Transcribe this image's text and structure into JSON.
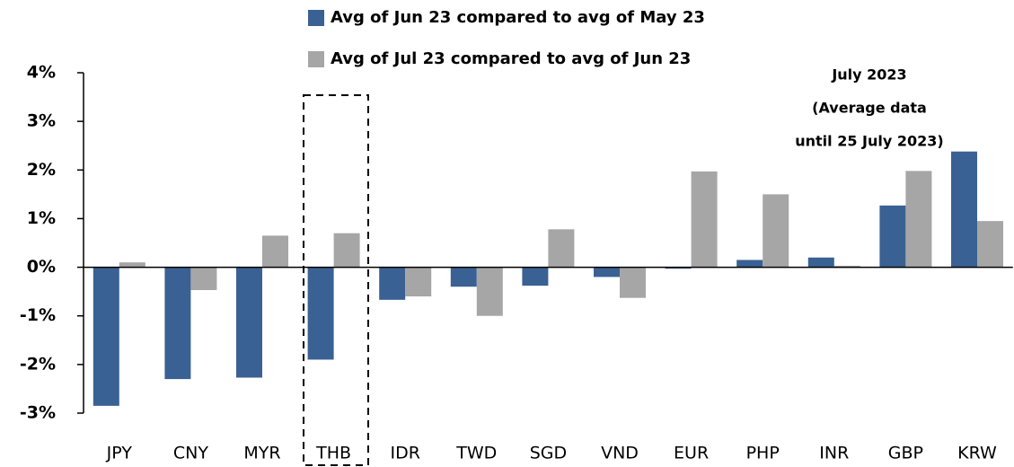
{
  "chart_data": {
    "type": "bar",
    "categories": [
      "JPY",
      "CNY",
      "MYR",
      "THB",
      "IDR",
      "TWD",
      "SGD",
      "VND",
      "EUR",
      "PHP",
      "INR",
      "GBP",
      "KRW"
    ],
    "series": [
      {
        "name": "Avg of Jun 23 compared to avg of May 23",
        "color": "#3a6193",
        "values": [
          -2.85,
          -2.3,
          -2.27,
          -1.9,
          -0.67,
          -0.4,
          -0.38,
          -0.2,
          -0.03,
          0.15,
          0.2,
          1.27,
          2.38
        ]
      },
      {
        "name": "Avg of Jul 23 compared to avg of Jun 23",
        "color": "#a6a6a6",
        "values": [
          0.1,
          -0.47,
          0.65,
          0.7,
          -0.6,
          -1.0,
          0.78,
          -0.63,
          1.97,
          1.5,
          0.03,
          1.98,
          0.95
        ]
      }
    ],
    "annotation": [
      "July 2023",
      "(Average data",
      "until 25 July 2023)"
    ],
    "ylim": [
      -3,
      4
    ],
    "yticks": [
      {
        "value": -3,
        "label": "-3%"
      },
      {
        "value": -2,
        "label": "-2%"
      },
      {
        "value": -1,
        "label": "-1%"
      },
      {
        "value": 0,
        "label": "0%"
      },
      {
        "value": 1,
        "label": "1%"
      },
      {
        "value": 2,
        "label": "2%"
      },
      {
        "value": 3,
        "label": "3%"
      },
      {
        "value": 4,
        "label": "4%"
      }
    ],
    "grid": false
  }
}
